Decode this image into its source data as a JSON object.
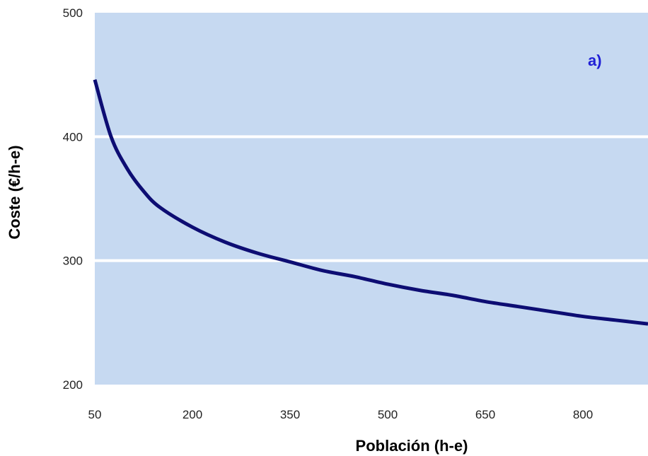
{
  "chart_data": {
    "type": "line",
    "title": "",
    "xlabel": "Población (h-e)",
    "ylabel": "Coste (€/h-e)",
    "annotation": "a)",
    "xlim": [
      50,
      900
    ],
    "ylim": [
      200,
      500
    ],
    "x_ticks": [
      50,
      200,
      350,
      500,
      650,
      800
    ],
    "y_ticks": [
      200,
      300,
      400,
      500
    ],
    "grid": true,
    "colors": {
      "plot_bg": "#c6d9f1",
      "line": "#0d0d73",
      "grid": "#ffffff",
      "annotation": "#1f1fd6"
    },
    "series": [
      {
        "x": [
          50,
          75,
          100,
          125,
          150,
          200,
          250,
          300,
          350,
          400,
          450,
          500,
          550,
          600,
          650,
          700,
          750,
          800,
          850,
          900
        ],
        "values": [
          446,
          400,
          374,
          356,
          343,
          327,
          315,
          306,
          299,
          292,
          287,
          281,
          276,
          272,
          267,
          263,
          259,
          255,
          252,
          249
        ]
      }
    ]
  }
}
